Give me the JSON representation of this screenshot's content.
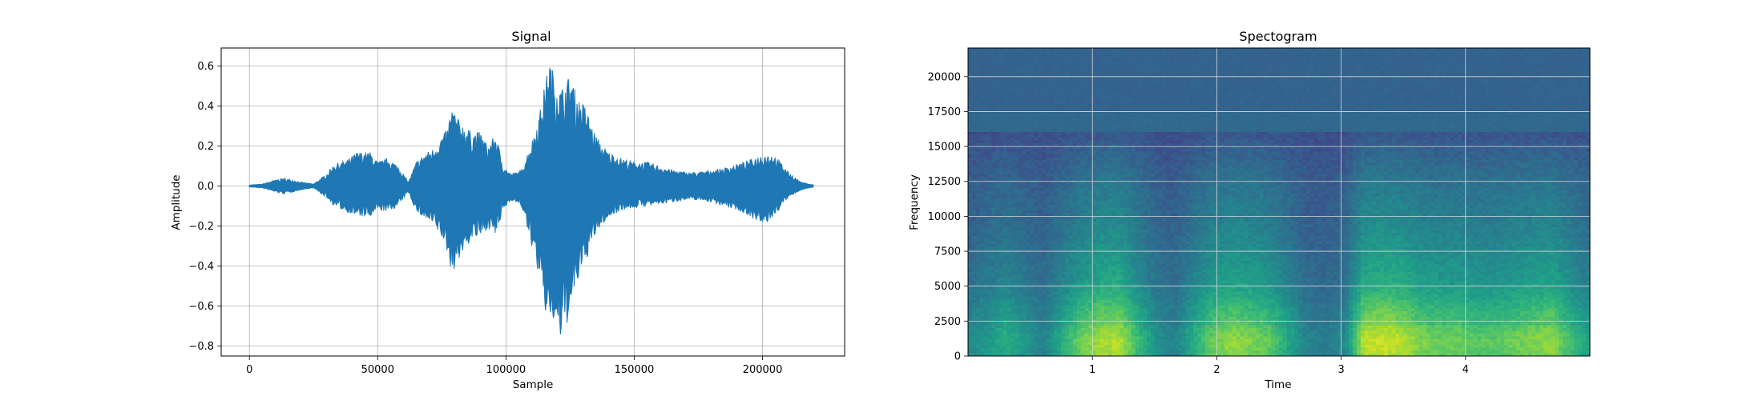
{
  "chart_data": [
    {
      "type": "line",
      "title": "Signal",
      "xlabel": "Sample",
      "ylabel": "Amplitude",
      "xlim": [
        -11000,
        232000
      ],
      "ylim": [
        -0.85,
        0.69
      ],
      "xticks": [
        0,
        50000,
        100000,
        150000,
        200000
      ],
      "xtick_labels": [
        "0",
        "50000",
        "100000",
        "150000",
        "200000"
      ],
      "yticks": [
        -0.8,
        -0.6,
        -0.4,
        -0.2,
        0.0,
        0.2,
        0.4,
        0.6
      ],
      "ytick_labels": [
        "−0.8",
        "−0.6",
        "−0.4",
        "−0.2",
        "0.0",
        "0.2",
        "0.4",
        "0.6"
      ],
      "grid": true,
      "color": "#1f77b4",
      "series": [
        {
          "x": [
            0,
            5000,
            10000,
            13000,
            17000,
            20000,
            25000,
            30000,
            33000,
            38000,
            42000,
            47000,
            50000,
            54000,
            58000,
            62000,
            65000,
            68000,
            72000,
            75000,
            77000,
            79000,
            81000,
            84000,
            87000,
            90000,
            93000,
            96000,
            99000,
            102000,
            106000,
            110000,
            113000,
            115000,
            117000,
            119000,
            121000,
            123000,
            125000,
            128000,
            131000,
            134000,
            137000,
            140000,
            145000,
            150000,
            155000,
            160000,
            165000,
            170000,
            175000,
            180000,
            185000,
            190000,
            195000,
            200000,
            204000,
            207000,
            210000,
            215000,
            220000
          ],
          "upper": [
            0.005,
            0.01,
            0.03,
            0.04,
            0.03,
            0.02,
            0.01,
            0.06,
            0.11,
            0.13,
            0.17,
            0.17,
            0.12,
            0.14,
            0.1,
            0.02,
            0.12,
            0.16,
            0.19,
            0.25,
            0.28,
            0.4,
            0.34,
            0.3,
            0.27,
            0.27,
            0.2,
            0.26,
            0.1,
            0.06,
            0.08,
            0.22,
            0.36,
            0.5,
            0.63,
            0.55,
            0.48,
            0.51,
            0.56,
            0.44,
            0.4,
            0.28,
            0.21,
            0.17,
            0.14,
            0.12,
            0.12,
            0.1,
            0.08,
            0.07,
            0.07,
            0.08,
            0.09,
            0.11,
            0.13,
            0.16,
            0.16,
            0.12,
            0.07,
            0.02,
            0.005
          ],
          "lower": [
            -0.005,
            -0.01,
            -0.03,
            -0.04,
            -0.03,
            -0.02,
            -0.01,
            -0.06,
            -0.1,
            -0.13,
            -0.15,
            -0.16,
            -0.12,
            -0.13,
            -0.1,
            -0.03,
            -0.13,
            -0.16,
            -0.2,
            -0.26,
            -0.33,
            -0.44,
            -0.38,
            -0.32,
            -0.26,
            -0.26,
            -0.21,
            -0.25,
            -0.12,
            -0.07,
            -0.1,
            -0.3,
            -0.46,
            -0.63,
            -0.66,
            -0.7,
            -0.78,
            -0.72,
            -0.64,
            -0.48,
            -0.38,
            -0.27,
            -0.2,
            -0.16,
            -0.12,
            -0.11,
            -0.1,
            -0.09,
            -0.08,
            -0.07,
            -0.07,
            -0.08,
            -0.1,
            -0.12,
            -0.15,
            -0.2,
            -0.16,
            -0.11,
            -0.06,
            -0.02,
            -0.005
          ]
        }
      ]
    },
    {
      "type": "heatmap",
      "title": "Spectogram",
      "xlabel": "Time",
      "ylabel": "Frequency",
      "xlim": [
        0,
        5.0
      ],
      "ylim": [
        0,
        22050
      ],
      "xticks": [
        1,
        2,
        3,
        4
      ],
      "xtick_labels": [
        "1",
        "2",
        "3",
        "4"
      ],
      "yticks": [
        0,
        2500,
        5000,
        7500,
        10000,
        12500,
        15000,
        17500,
        20000
      ],
      "ytick_labels": [
        "0",
        "2500",
        "5000",
        "7500",
        "10000",
        "12500",
        "15000",
        "17500",
        "20000"
      ],
      "grid": true,
      "colormap": "viridis",
      "cutoff_frequency": 16000,
      "time_energy": [
        0.25,
        0.35,
        0.5,
        0.35,
        0.2,
        0.5,
        0.75,
        0.9,
        0.95,
        0.6,
        0.3,
        0.2,
        0.5,
        0.75,
        0.85,
        0.8,
        0.7,
        0.45,
        0.2,
        0.15,
        0.25,
        0.95,
        1.0,
        0.95,
        0.8,
        0.75,
        0.75,
        0.7,
        0.7,
        0.75,
        0.8,
        0.85,
        0.6,
        0.4
      ],
      "band_energy": [
        0.95,
        1.0,
        0.9,
        0.85,
        0.7,
        0.6,
        0.55,
        0.5,
        0.45,
        0.4,
        0.38,
        0.33,
        0.28,
        0.22,
        0.15,
        0.08
      ],
      "quiet_level": 0.22
    }
  ]
}
